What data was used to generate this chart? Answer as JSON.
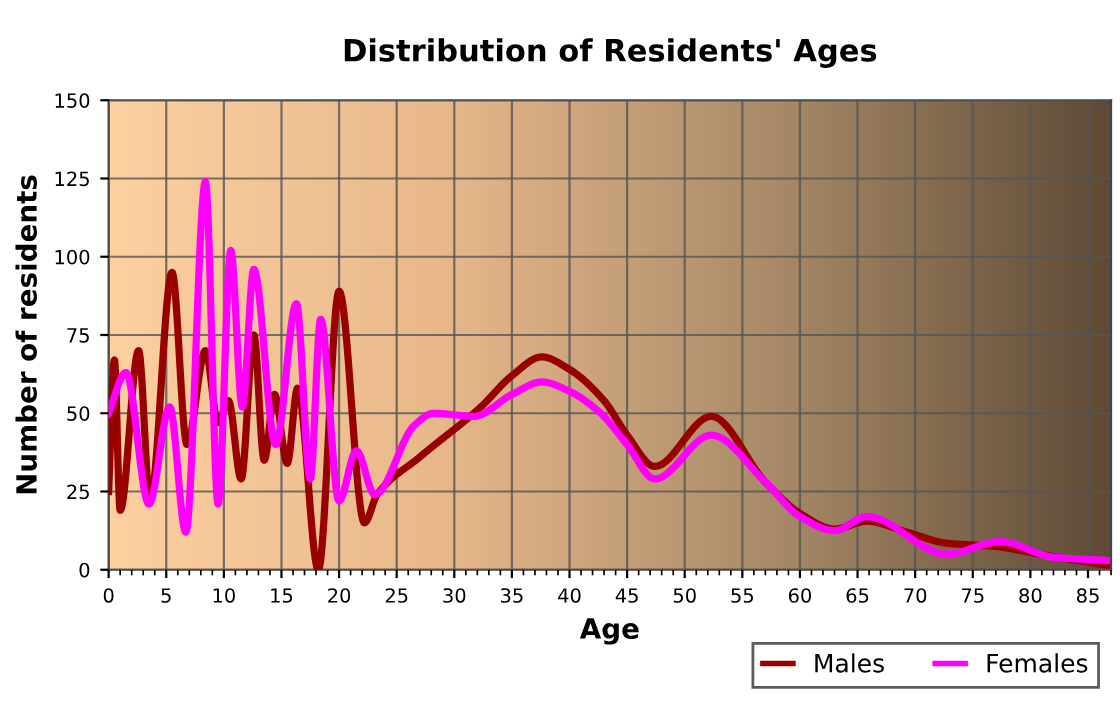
{
  "chart_data": {
    "type": "line",
    "title": "Distribution of Residents' Ages",
    "xlabel": "Age",
    "ylabel": "Number of residents",
    "xlim": [
      0,
      87
    ],
    "xticks": [
      0,
      5,
      10,
      15,
      20,
      25,
      30,
      35,
      40,
      45,
      50,
      55,
      60,
      65,
      70,
      75,
      80,
      85
    ],
    "ylim": [
      0,
      150
    ],
    "yticks": [
      0,
      25,
      50,
      75,
      100,
      125,
      150
    ],
    "grid": true,
    "legend": "bottom right",
    "marker": "none",
    "line_style": "solid",
    "series": [
      {
        "name": "Males",
        "color": "#990000",
        "x": [
          0,
          0.5,
          1,
          2.6,
          3.6,
          5.5,
          6.8,
          8.4,
          9.5,
          10.4,
          11.5,
          12.6,
          13.5,
          14.4,
          15.5,
          16.4,
          18.2,
          20,
          22.2,
          23.3,
          27,
          32.3,
          35,
          37.6,
          40,
          43,
          45,
          47.4,
          52.3,
          57,
          60,
          63,
          65.8,
          69.3,
          72.7,
          76.8,
          81.5,
          86.6
        ],
        "values": [
          25,
          67,
          19,
          70,
          22,
          95,
          40,
          70,
          47,
          54,
          29,
          75,
          35,
          56,
          34,
          58,
          0,
          89,
          15,
          24,
          36,
          52,
          62,
          68,
          64,
          54,
          43,
          33,
          49,
          28,
          18,
          13,
          15.5,
          12,
          8.5,
          7.5,
          4.5,
          1.5
        ]
      },
      {
        "name": "Females",
        "color": "#ff00ff",
        "x": [
          0,
          1.5,
          3.5,
          5.3,
          6.7,
          8.4,
          9.5,
          10.6,
          11.6,
          12.6,
          14.5,
          16.3,
          17.5,
          18.4,
          20,
          21.5,
          23.1,
          26.5,
          28.2,
          31.7,
          35,
          37.6,
          40,
          42.7,
          45,
          47.4,
          52.3,
          57,
          60,
          63,
          65.8,
          72.7,
          77.4,
          82,
          86.6
        ],
        "values": [
          50,
          63,
          21,
          52,
          12,
          124,
          21,
          102,
          52,
          96,
          40,
          85,
          29,
          80,
          22,
          38,
          24,
          46,
          50,
          49,
          56,
          60,
          57,
          50,
          40,
          29,
          43,
          28,
          17,
          12.5,
          17,
          5,
          9,
          4,
          3
        ]
      }
    ]
  }
}
